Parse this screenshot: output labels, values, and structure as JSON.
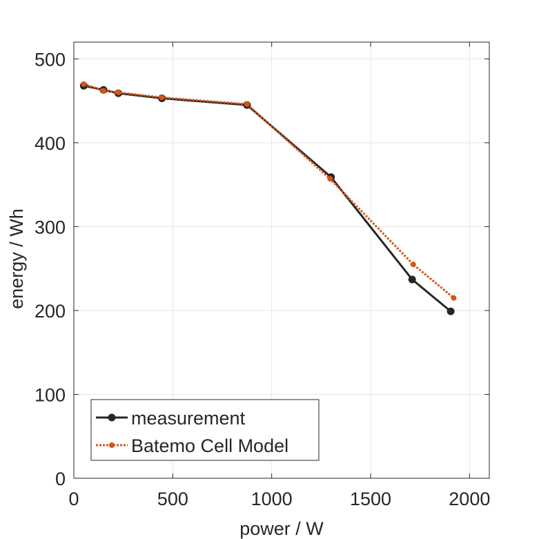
{
  "chart_data": {
    "type": "line",
    "xlabel": "power / W",
    "ylabel": "energy / Wh",
    "xlim": [
      0,
      2100
    ],
    "ylim": [
      0,
      520
    ],
    "xticks": [
      0,
      500,
      1000,
      1500,
      2000
    ],
    "yticks": [
      0,
      100,
      200,
      300,
      400,
      500
    ],
    "grid": true,
    "legend_position": "bottom-left",
    "series": [
      {
        "name": "measurement",
        "color": "#262626",
        "style": "solid",
        "marker": "circle",
        "x": [
          50,
          150,
          225,
          445,
          875,
          1300,
          1710,
          1905
        ],
        "y": [
          468,
          463,
          459,
          453,
          445,
          359,
          237,
          199
        ]
      },
      {
        "name": "Batemo Cell Model",
        "color": "#D95319",
        "style": "dotted",
        "marker": "circle",
        "x": [
          50,
          150,
          225,
          445,
          875,
          1295,
          1715,
          1920
        ],
        "y": [
          470,
          462,
          460,
          454,
          446,
          357,
          255,
          215
        ]
      }
    ]
  }
}
